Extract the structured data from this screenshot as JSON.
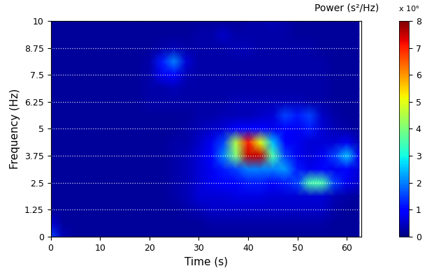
{
  "chart_data": {
    "type": "heatmap",
    "xlabel": "Time (s)",
    "ylabel": "Frequency (Hz)",
    "colorbar_label": "Power (s²/Hz)",
    "colorbar_multiplier": "x 10⁶",
    "xlim": [
      0,
      63
    ],
    "xticks": [
      0,
      10,
      20,
      30,
      40,
      50,
      60
    ],
    "ylim": [
      0,
      10
    ],
    "yticks": [
      0,
      1.25,
      2.5,
      3.75,
      5,
      6.25,
      7.5,
      8.75,
      10
    ],
    "grid": "y",
    "color": "jet",
    "clim": [
      0,
      8
    ],
    "cticks": [
      0,
      1,
      2,
      3,
      4,
      5,
      6,
      7,
      8
    ],
    "cell_x": [
      0,
      2.5,
      5,
      7.5,
      10,
      12.5,
      15,
      17.5,
      20,
      22.5,
      25,
      27.5,
      30,
      32.5,
      35,
      37.5,
      40,
      42.5,
      45,
      47.5,
      50,
      52.5,
      55,
      57.5,
      60,
      62.5
    ],
    "cell_y": [
      0,
      0.625,
      1.25,
      1.875,
      2.5,
      3.125,
      3.75,
      4.375,
      5,
      5.625,
      6.25,
      6.875,
      7.5,
      8.125,
      8.75,
      9.375,
      10
    ],
    "cells": [
      [
        1.5,
        0.4,
        0.2,
        0.2,
        0.2,
        0.2,
        0.2,
        0.2,
        0.2,
        0.2,
        0.2,
        0.2,
        0.2,
        0.2,
        0.2,
        0.2,
        0.2,
        0.2,
        0.2,
        0.2,
        0.2,
        0.2,
        0.2,
        0.2,
        0.2,
        0.2
      ],
      [
        0.6,
        0.2,
        0.2,
        0.2,
        0.2,
        0.2,
        0.2,
        0.2,
        0.2,
        0.2,
        0.2,
        0.2,
        0.2,
        0.3,
        0.3,
        0.3,
        0.3,
        0.3,
        0.3,
        0.3,
        0.3,
        0.3,
        0.3,
        0.2,
        0.2,
        0.2
      ],
      [
        0.2,
        0.2,
        0.2,
        0.2,
        0.2,
        0.2,
        0.2,
        0.2,
        0.2,
        0.2,
        0.2,
        0.3,
        0.4,
        0.5,
        0.5,
        0.5,
        0.5,
        0.5,
        0.5,
        0.5,
        0.5,
        0.5,
        0.5,
        0.3,
        0.2,
        0.2
      ],
      [
        0.2,
        0.2,
        0.2,
        0.2,
        0.2,
        0.2,
        0.2,
        0.2,
        0.2,
        0.2,
        0.3,
        0.4,
        0.6,
        0.6,
        0.6,
        0.7,
        0.7,
        0.7,
        0.6,
        0.6,
        0.6,
        0.6,
        0.6,
        0.4,
        0.3,
        0.2
      ],
      [
        0.2,
        0.2,
        0.2,
        0.2,
        0.2,
        0.2,
        0.2,
        0.2,
        0.2,
        0.2,
        0.3,
        0.4,
        0.6,
        0.8,
        0.9,
        1.0,
        1.2,
        1.2,
        1.0,
        1.2,
        1.5,
        3.5,
        3.5,
        1.5,
        0.8,
        0.5
      ],
      [
        0.2,
        0.2,
        0.2,
        0.2,
        0.2,
        0.2,
        0.2,
        0.2,
        0.2,
        0.2,
        0.3,
        0.4,
        0.6,
        0.8,
        1.2,
        1.5,
        2.0,
        2.0,
        2.0,
        2.2,
        1.2,
        0.8,
        1.0,
        0.8,
        1.0,
        0.6
      ],
      [
        0.2,
        0.2,
        0.2,
        0.2,
        0.2,
        0.2,
        0.2,
        0.2,
        0.2,
        0.2,
        0.3,
        0.4,
        0.6,
        1.0,
        2.0,
        4.0,
        7.5,
        7.5,
        3.5,
        1.5,
        0.8,
        0.6,
        0.8,
        1.5,
        2.5,
        0.8
      ],
      [
        0.2,
        0.2,
        0.2,
        0.2,
        0.2,
        0.2,
        0.2,
        0.2,
        0.2,
        0.2,
        0.3,
        0.3,
        0.5,
        0.8,
        1.5,
        4.5,
        7.0,
        5.0,
        2.5,
        1.0,
        0.8,
        0.6,
        0.6,
        0.6,
        0.8,
        0.4
      ],
      [
        0.2,
        0.2,
        0.2,
        0.2,
        0.2,
        0.2,
        0.2,
        0.2,
        0.2,
        0.2,
        0.2,
        0.3,
        0.4,
        0.5,
        0.6,
        1.0,
        1.0,
        1.0,
        0.8,
        1.0,
        0.8,
        1.2,
        0.6,
        0.4,
        0.3,
        0.2
      ],
      [
        0.2,
        0.2,
        0.2,
        0.2,
        0.2,
        0.2,
        0.2,
        0.2,
        0.2,
        0.2,
        0.2,
        0.2,
        0.3,
        0.3,
        0.4,
        0.4,
        0.4,
        0.5,
        0.6,
        1.5,
        1.2,
        1.5,
        0.5,
        0.3,
        0.2,
        0.2
      ],
      [
        0.2,
        0.2,
        0.2,
        0.2,
        0.2,
        0.2,
        0.2,
        0.2,
        0.3,
        0.3,
        0.3,
        0.3,
        0.3,
        0.3,
        0.3,
        0.4,
        0.4,
        0.4,
        0.4,
        0.4,
        0.4,
        0.3,
        0.3,
        0.2,
        0.2,
        0.2
      ],
      [
        0.2,
        0.2,
        0.2,
        0.2,
        0.2,
        0.2,
        0.2,
        0.2,
        0.3,
        0.3,
        0.4,
        0.3,
        0.3,
        0.3,
        0.3,
        0.3,
        0.3,
        0.3,
        0.3,
        0.3,
        0.3,
        0.3,
        0.3,
        0.2,
        0.2,
        0.2
      ],
      [
        0.2,
        0.2,
        0.2,
        0.2,
        0.2,
        0.2,
        0.2,
        0.2,
        0.3,
        0.8,
        1.0,
        0.4,
        0.3,
        0.3,
        0.3,
        0.3,
        0.3,
        0.3,
        0.3,
        0.3,
        0.3,
        0.3,
        0.3,
        0.2,
        0.2,
        0.2
      ],
      [
        0.2,
        0.2,
        0.2,
        0.2,
        0.2,
        0.2,
        0.2,
        0.2,
        0.3,
        1.2,
        2.0,
        0.6,
        0.3,
        0.3,
        0.3,
        0.3,
        0.3,
        0.3,
        0.3,
        0.3,
        0.3,
        0.3,
        0.3,
        0.2,
        0.2,
        0.2
      ],
      [
        0.2,
        0.2,
        0.2,
        0.2,
        0.2,
        0.2,
        0.2,
        0.2,
        0.2,
        0.3,
        0.4,
        0.3,
        0.3,
        0.3,
        0.3,
        0.4,
        0.4,
        0.3,
        0.3,
        0.3,
        0.3,
        0.3,
        0.2,
        0.2,
        0.2,
        0.2
      ],
      [
        0.2,
        0.2,
        0.2,
        0.2,
        0.2,
        0.2,
        0.2,
        0.2,
        0.2,
        0.2,
        0.2,
        0.2,
        0.3,
        0.3,
        0.5,
        0.3,
        0.3,
        0.3,
        0.3,
        0.3,
        0.2,
        0.2,
        0.2,
        0.2,
        0.2,
        0.2
      ],
      [
        0.2,
        0.2,
        0.2,
        0.2,
        0.2,
        0.2,
        0.2,
        0.2,
        0.2,
        0.2,
        0.2,
        0.2,
        0.2,
        0.2,
        0.2,
        0.2,
        0.3,
        0.3,
        0.4,
        0.3,
        0.2,
        0.2,
        0.2,
        0.2,
        0.2,
        0.2
      ]
    ]
  }
}
